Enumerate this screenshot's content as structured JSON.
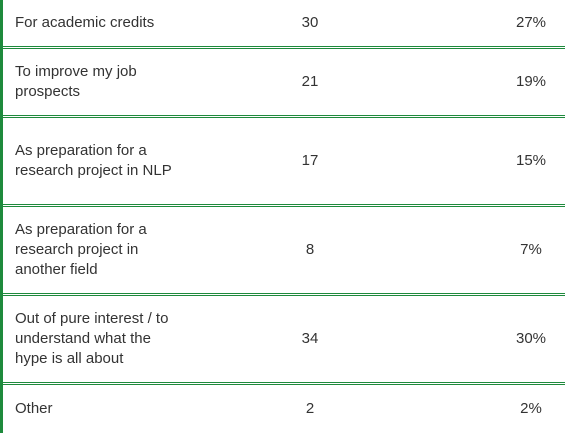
{
  "rows": [
    {
      "option": "For academic credits",
      "count": "30",
      "percent": "27%"
    },
    {
      "option": "To improve my job prospects",
      "count": "21",
      "percent": "19%"
    },
    {
      "option": "As preparation for a research project in NLP",
      "count": "17",
      "percent": "15%"
    },
    {
      "option": "As preparation for a research project in another field",
      "count": "8",
      "percent": "7%"
    },
    {
      "option": "Out of pure interest / to understand what the hype is all about",
      "count": "34",
      "percent": "30%"
    },
    {
      "option": "Other",
      "count": "2",
      "percent": "2%"
    }
  ],
  "colors": {
    "accent": "#1e8a3c",
    "text": "#333333"
  }
}
